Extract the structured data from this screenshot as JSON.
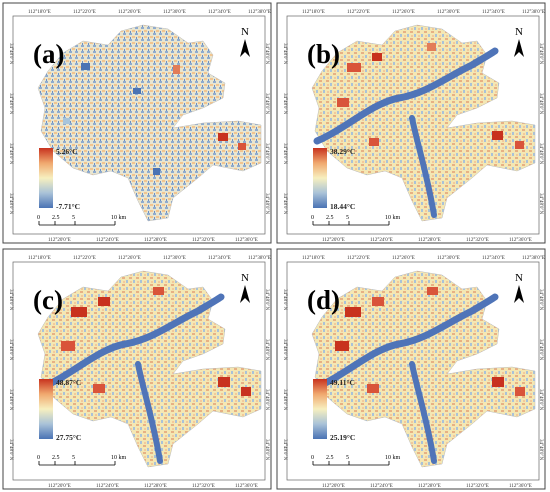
{
  "figure": {
    "panels": [
      {
        "id": "a",
        "label": "(a)",
        "legend_max": "5.26°C",
        "legend_min": "-7.71°C",
        "has_river": false
      },
      {
        "id": "b",
        "label": "(b)",
        "legend_max": "38.29°C",
        "legend_min": "18.44°C",
        "has_river": true
      },
      {
        "id": "c",
        "label": "(c)",
        "legend_max": "48.87°C",
        "legend_min": "27.75°C",
        "has_river": true
      },
      {
        "id": "d",
        "label": "(d)",
        "legend_max": "49.11°C",
        "legend_min": "25.19°C",
        "has_river": true
      }
    ],
    "north_label": "N",
    "top_ticks": [
      "112°18'0\"E",
      "112°22'0\"E",
      "112°26'0\"E",
      "112°30'0\"E",
      "112°34'0\"E",
      "112°38'0\"E"
    ],
    "bottom_ticks": [
      "112°20'0\"E",
      "112°24'0\"E",
      "112°28'0\"E",
      "112°32'0\"E",
      "112°36'0\"E"
    ],
    "lat_label": "34°48'0\"N",
    "scale_bar": {
      "labels": [
        "0",
        "2.5",
        "5",
        "10 km"
      ]
    },
    "colors": {
      "hot": "#c8321e",
      "warm": "#f0a86e",
      "neutral": "#f7efbf",
      "cool": "#a9c2d8",
      "cold": "#4a73b4",
      "river": "#4f74b8"
    }
  }
}
